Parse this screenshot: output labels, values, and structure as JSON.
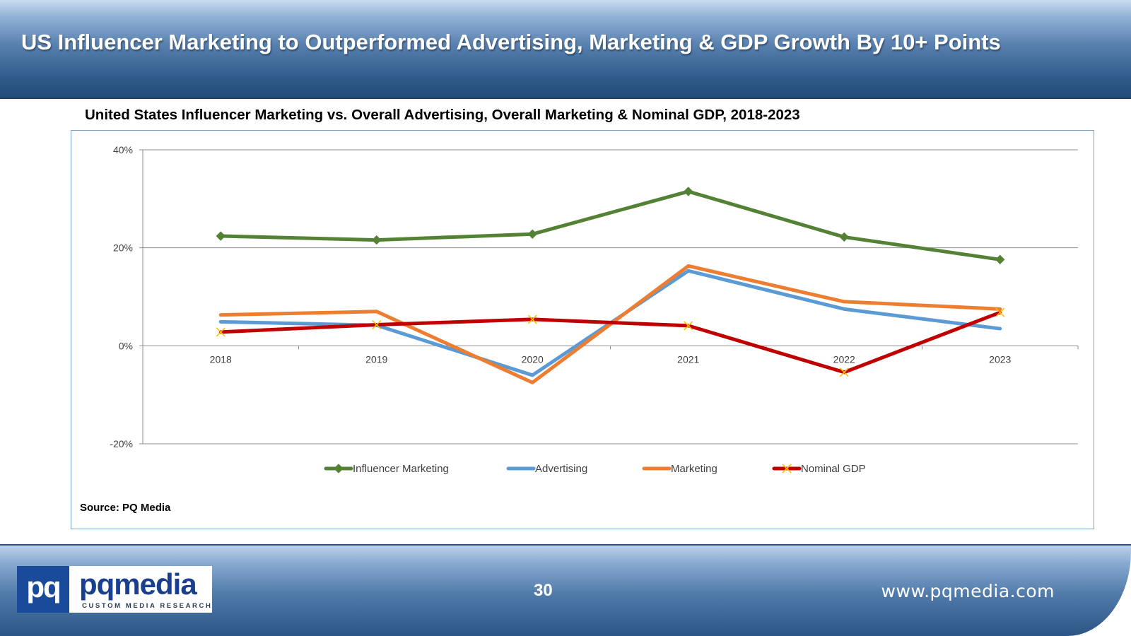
{
  "header": {
    "title": "US Influencer Marketing to Outperformed Advertising, Marketing & GDP Growth By 10+ Points"
  },
  "chart_data": {
    "type": "line",
    "title": "United States Influencer Marketing vs. Overall Advertising, Overall Marketing & Nominal GDP, 2018-2023",
    "categories": [
      "2018",
      "2019",
      "2020",
      "2021",
      "2022",
      "2023"
    ],
    "ylim": [
      -20,
      40
    ],
    "yticks": [
      -20,
      0,
      20,
      40
    ],
    "ytick_labels": [
      "-20%",
      "0%",
      "20%",
      "40%"
    ],
    "grid": true,
    "legend_position": "bottom",
    "series": [
      {
        "name": "Influencer Marketing",
        "color": "#548235",
        "marker": "diamond",
        "values": [
          22.4,
          21.6,
          22.8,
          31.5,
          22.2,
          17.6
        ]
      },
      {
        "name": "Advertising",
        "color": "#5b9bd5",
        "marker": "none",
        "values": [
          4.9,
          4.2,
          -6.0,
          15.3,
          7.5,
          3.5
        ]
      },
      {
        "name": "Marketing",
        "color": "#ed7d31",
        "marker": "none",
        "values": [
          6.3,
          7.0,
          -7.5,
          16.3,
          9.0,
          7.5
        ]
      },
      {
        "name": "Nominal GDP",
        "color": "#c00000",
        "marker": "x",
        "marker_color": "#ffc000",
        "values": [
          2.8,
          4.3,
          5.4,
          4.1,
          -5.4,
          6.8
        ]
      }
    ]
  },
  "source": "Source: PQ Media",
  "footer": {
    "page_number": "30",
    "website": "www.pqmedia.com",
    "logo_mark": "pq",
    "logo_word": "pqmedia",
    "logo_tagline": "CUSTOM MEDIA RESEARCH"
  }
}
